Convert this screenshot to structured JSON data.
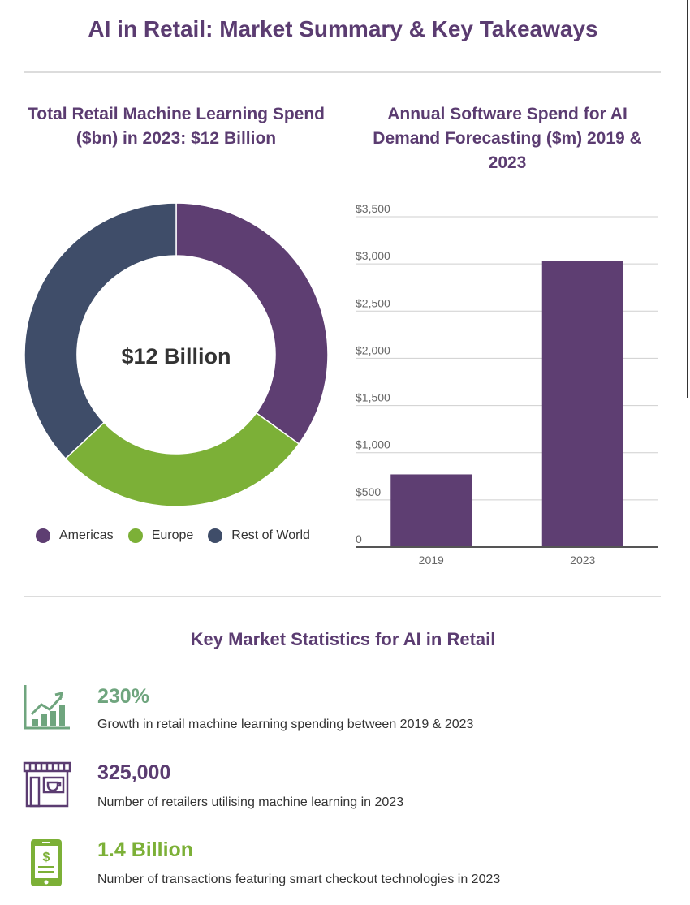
{
  "page": {
    "title": "AI in Retail: Market Summary & Key Takeaways"
  },
  "chart_data": [
    {
      "type": "pie",
      "title": "Total Retail Machine Learning Spend ($bn) in 2023: $12 Billion",
      "center_label": "$12 Billion",
      "categories": [
        "Americas",
        "Europe",
        "Rest of World"
      ],
      "values": [
        35,
        28,
        37
      ],
      "colors": [
        "#5e3e72",
        "#7cb037",
        "#3f4d69"
      ],
      "legend": "bottom"
    },
    {
      "type": "bar",
      "title": "Annual Software Spend for AI Demand Forecasting ($m) 2019 & 2023",
      "categories": [
        "2019",
        "2023"
      ],
      "values": [
        770,
        3030
      ],
      "ylim": [
        0,
        3500
      ],
      "y_ticks": [
        0,
        500,
        1000,
        1500,
        2000,
        2500,
        3000,
        3500
      ],
      "y_tick_labels": [
        "0",
        "$500",
        "$1,000",
        "$1,500",
        "$2,000",
        "$2,500",
        "$3,000",
        "$3,500"
      ],
      "bar_color": "#5e3e72",
      "grid": true
    }
  ],
  "stats": {
    "heading": "Key Market Statistics for AI in Retail",
    "items": [
      {
        "value": "230%",
        "description": "Growth in retail machine learning spending between 2019 & 2023",
        "icon": "growth-chart-icon",
        "color": "#6fa57e"
      },
      {
        "value": "325,000",
        "description": "Number of retailers utilising machine learning in 2023",
        "icon": "storefront-icon",
        "color": "#5b3c71"
      },
      {
        "value": "1.4 Billion",
        "description": "Number of transactions featuring smart checkout technologies in 2023",
        "icon": "mobile-payment-icon",
        "color": "#7cb037"
      }
    ]
  }
}
